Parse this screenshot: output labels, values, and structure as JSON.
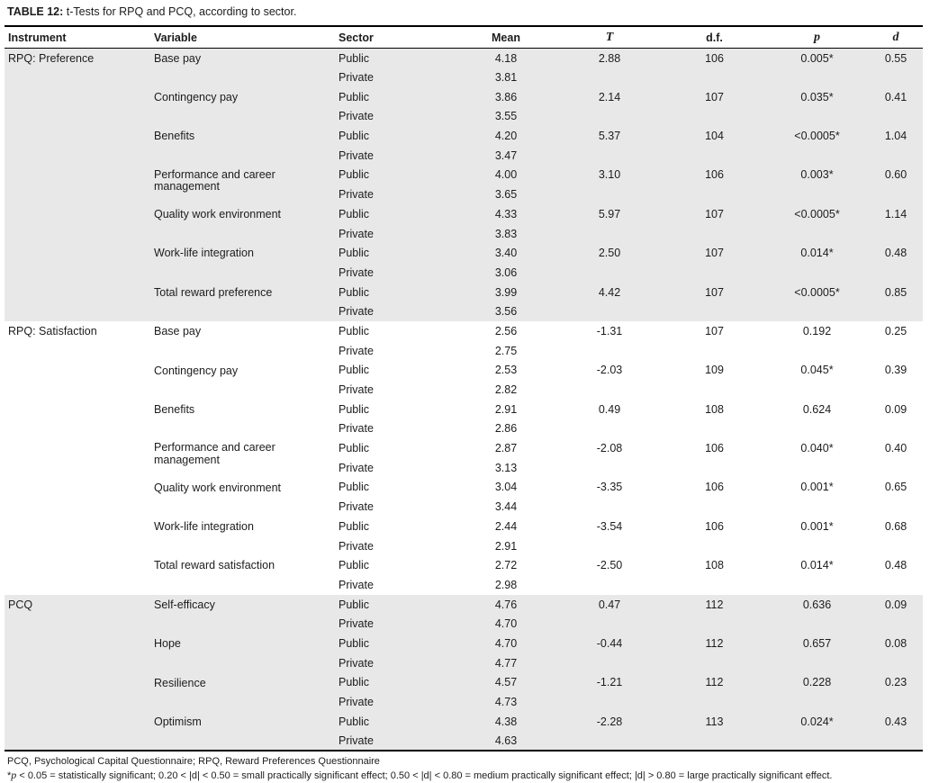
{
  "table": {
    "title_label": "TABLE 12:",
    "title_text": " t-Tests for RPQ and PCQ, according to sector.",
    "columns": [
      {
        "key": "instrument",
        "label": "Instrument",
        "align": "left",
        "italic": false
      },
      {
        "key": "variable",
        "label": "Variable",
        "align": "left",
        "italic": false
      },
      {
        "key": "sector",
        "label": "Sector",
        "align": "left",
        "italic": false
      },
      {
        "key": "mean",
        "label": "Mean",
        "align": "num",
        "italic": false
      },
      {
        "key": "t",
        "label": "T",
        "align": "num",
        "italic": true
      },
      {
        "key": "df",
        "label": "d.f.",
        "align": "num",
        "italic": false
      },
      {
        "key": "p",
        "label": "p",
        "align": "num",
        "italic": true
      },
      {
        "key": "d",
        "label": "d",
        "align": "num",
        "italic": true
      }
    ],
    "sector_labels": {
      "public": "Public",
      "private": "Private"
    },
    "groups": [
      {
        "instrument": "RPQ: Preference",
        "shaded": true,
        "variables": [
          {
            "name": "Base pay",
            "public": {
              "mean": "4.18",
              "t": "2.88",
              "df": "106",
              "p": "0.005*",
              "d": "0.55"
            },
            "private": {
              "mean": "3.81"
            }
          },
          {
            "name": "Contingency pay",
            "public": {
              "mean": "3.86",
              "t": "2.14",
              "df": "107",
              "p": "0.035*",
              "d": "0.41"
            },
            "private": {
              "mean": "3.55"
            }
          },
          {
            "name": "Benefits",
            "public": {
              "mean": "4.20",
              "t": "5.37",
              "df": "104",
              "p": "<0.0005*",
              "d": "1.04"
            },
            "private": {
              "mean": "3.47"
            }
          },
          {
            "name": "Performance and career management",
            "public": {
              "mean": "4.00",
              "t": "3.10",
              "df": "106",
              "p": "0.003*",
              "d": "0.60"
            },
            "private": {
              "mean": "3.65"
            }
          },
          {
            "name": "Quality work environment",
            "public": {
              "mean": "4.33",
              "t": "5.97",
              "df": "107",
              "p": "<0.0005*",
              "d": "1.14"
            },
            "private": {
              "mean": "3.83"
            }
          },
          {
            "name": "Work-life integration",
            "public": {
              "mean": "3.40",
              "t": "2.50",
              "df": "107",
              "p": "0.014*",
              "d": "0.48"
            },
            "private": {
              "mean": "3.06"
            }
          },
          {
            "name": "Total reward preference",
            "public": {
              "mean": "3.99",
              "t": "4.42",
              "df": "107",
              "p": "<0.0005*",
              "d": "0.85"
            },
            "private": {
              "mean": "3.56"
            }
          }
        ]
      },
      {
        "instrument": "RPQ: Satisfaction",
        "shaded": false,
        "variables": [
          {
            "name": "Base pay",
            "public": {
              "mean": "2.56",
              "t": "-1.31",
              "df": "107",
              "p": "0.192",
              "d": "0.25"
            },
            "private": {
              "mean": "2.75"
            }
          },
          {
            "name": "Contingency pay",
            "public": {
              "mean": "2.53",
              "t": "-2.03",
              "df": "109",
              "p": "0.045*",
              "d": "0.39"
            },
            "private": {
              "mean": "2.82"
            }
          },
          {
            "name": "Benefits",
            "public": {
              "mean": "2.91",
              "t": "0.49",
              "df": "108",
              "p": "0.624",
              "d": "0.09"
            },
            "private": {
              "mean": "2.86"
            }
          },
          {
            "name": "Performance and career management",
            "public": {
              "mean": "2.87",
              "t": "-2.08",
              "df": "106",
              "p": "0.040*",
              "d": "0.40"
            },
            "private": {
              "mean": "3.13"
            }
          },
          {
            "name": "Quality work environment",
            "public": {
              "mean": "3.04",
              "t": "-3.35",
              "df": "106",
              "p": "0.001*",
              "d": "0.65"
            },
            "private": {
              "mean": "3.44"
            }
          },
          {
            "name": "Work-life integration",
            "public": {
              "mean": "2.44",
              "t": "-3.54",
              "df": "106",
              "p": "0.001*",
              "d": "0.68"
            },
            "private": {
              "mean": "2.91"
            }
          },
          {
            "name": "Total reward satisfaction",
            "public": {
              "mean": "2.72",
              "t": "-2.50",
              "df": "108",
              "p": "0.014*",
              "d": "0.48"
            },
            "private": {
              "mean": "2.98"
            }
          }
        ]
      },
      {
        "instrument": "PCQ",
        "shaded": true,
        "variables": [
          {
            "name": "Self-efficacy",
            "public": {
              "mean": "4.76",
              "t": "0.47",
              "df": "112",
              "p": "0.636",
              "d": "0.09"
            },
            "private": {
              "mean": "4.70"
            }
          },
          {
            "name": "Hope",
            "public": {
              "mean": "4.70",
              "t": "-0.44",
              "df": "112",
              "p": "0.657",
              "d": "0.08"
            },
            "private": {
              "mean": "4.77"
            }
          },
          {
            "name": "Resilience",
            "public": {
              "mean": "4.57",
              "t": "-1.21",
              "df": "112",
              "p": "0.228",
              "d": "0.23"
            },
            "private": {
              "mean": "4.73"
            }
          },
          {
            "name": "Optimism",
            "public": {
              "mean": "4.38",
              "t": "-2.28",
              "df": "113",
              "p": "0.024*",
              "d": "0.43"
            },
            "private": {
              "mean": "4.63"
            }
          }
        ]
      }
    ],
    "footnotes": {
      "abbrev": "PCQ, Psychological Capital Questionnaire; RPQ, Reward Preferences Questionnaire",
      "sig_star": "*",
      "sig_p": "p",
      "sig_rest": " < 0.05 = statistically significant; 0.20 < |d| < 0.50 = small practically significant effect; 0.50 < |d| < 0.80 = medium practically significant effect; |d| > 0.80 = large practically significant effect."
    },
    "colors": {
      "group_shade": "#e8e8e8",
      "text": "#1c1c1c",
      "border": "#000000"
    }
  }
}
